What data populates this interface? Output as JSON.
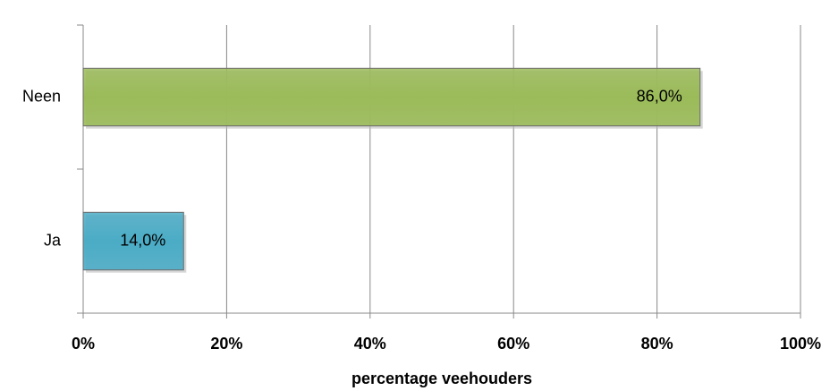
{
  "chart_data": {
    "type": "bar",
    "orientation": "horizontal",
    "categories": [
      "Neen",
      "Ja"
    ],
    "values": [
      86,
      14
    ],
    "value_labels": [
      "86,0%",
      "14,0%"
    ],
    "colors": [
      "#9bbb59",
      "#4bacc6"
    ],
    "xlim": [
      0,
      100
    ],
    "xticks": [
      {
        "value": 0,
        "label": "0%"
      },
      {
        "value": 20,
        "label": "20%"
      },
      {
        "value": 40,
        "label": "40%"
      },
      {
        "value": 60,
        "label": "60%"
      },
      {
        "value": 80,
        "label": "80%"
      },
      {
        "value": 100,
        "label": "100%"
      }
    ],
    "x_label": "percentage veehouders",
    "grid": true
  }
}
